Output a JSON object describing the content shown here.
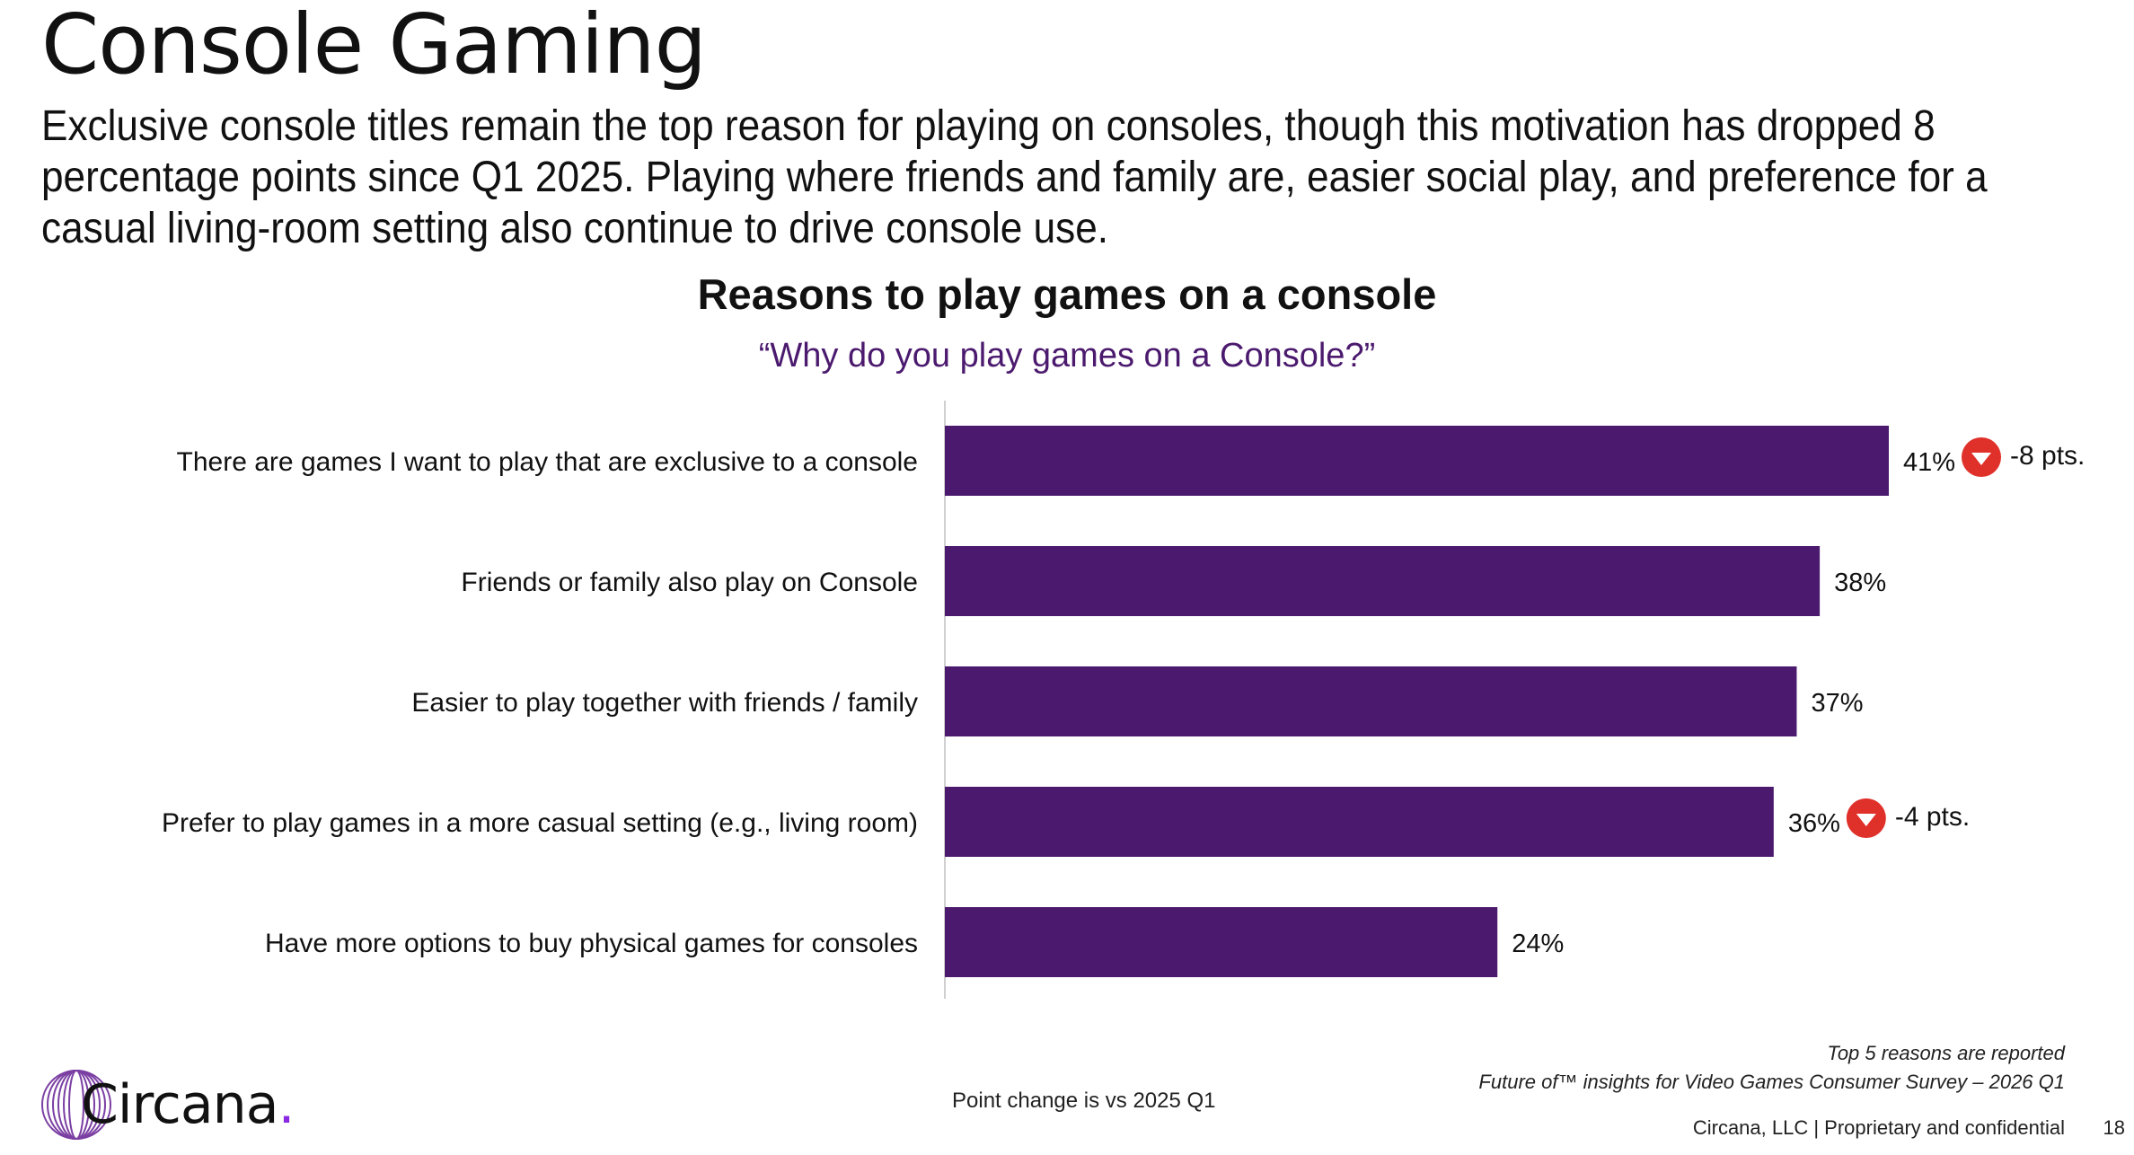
{
  "page": {
    "title": "Console Gaming",
    "subtitle": "Exclusive console titles remain the top reason for playing on consoles, though this motivation has dropped 8 percentage points since Q1 2025. Playing where friends and family are, easier social play, and preference for a casual living-room setting also continue to drive console use."
  },
  "chart_data": {
    "type": "bar",
    "orientation": "horizontal",
    "title": "Reasons to play games on a console",
    "subtitle": "“Why do you play games on a Console?”",
    "categories": [
      "There are games I want to play that are exclusive to a console",
      "Friends or family also play on Console",
      "Easier to play together with friends / family",
      "Prefer to play games in a more casual setting (e.g., living room)",
      "Have more options to buy physical games for consoles"
    ],
    "values": [
      41,
      38,
      37,
      36,
      24
    ],
    "value_labels": [
      "41%",
      "38%",
      "37%",
      "36%",
      "24%"
    ],
    "changes": [
      {
        "index": 0,
        "label": "-8 pts.",
        "direction": "down"
      },
      {
        "index": 3,
        "label": "-4 pts.",
        "direction": "down"
      }
    ],
    "xlim": [
      0,
      45
    ],
    "bar_color": "#4b1a6e",
    "change_icon_color": "#e0302a",
    "grid": false
  },
  "notes": {
    "point_change": "Point change is vs 2025 Q1",
    "top_reasons": "Top 5 reasons are reported",
    "source": "Future of™ insights for Video Games Consumer Survey – 2026 Q1"
  },
  "footer": {
    "brand": "Circana",
    "confidential": "Circana, LLC |  Proprietary and confidential",
    "page_number": "18"
  }
}
